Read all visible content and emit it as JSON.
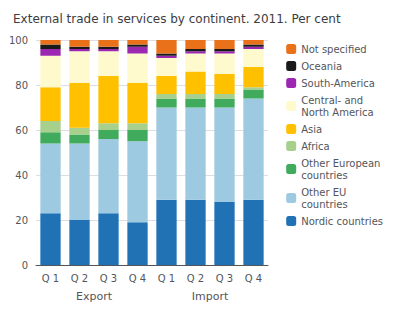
{
  "chart_data": {
    "type": "bar",
    "title": "External trade in services by continent. 2011. Per cent",
    "categories": [
      "Q 1",
      "Q 2",
      "Q 3",
      "Q 4",
      "Q 1",
      "Q 2",
      "Q 3",
      "Q 4"
    ],
    "annotations": [
      "Export",
      "Import"
    ],
    "series": [
      {
        "name": "Nordic countries",
        "color": "#2171B5",
        "values": [
          23,
          20,
          23,
          19,
          29,
          29,
          28,
          29
        ]
      },
      {
        "name": "Other EU\ncountries",
        "color": "#9ECAE1",
        "values": [
          31,
          34,
          33,
          36,
          41,
          41,
          42,
          45
        ]
      },
      {
        "name": "Other European\ncountries",
        "color": "#41AB5D",
        "values": [
          5,
          4,
          4,
          5,
          4,
          4,
          4,
          4
        ]
      },
      {
        "name": "Africa",
        "color": "#A8D08D",
        "values": [
          5,
          3,
          3,
          3,
          2,
          2,
          2,
          1
        ]
      },
      {
        "name": "Asia",
        "color": "#FFC000",
        "values": [
          15,
          20,
          21,
          18,
          8,
          10,
          9,
          9
        ]
      },
      {
        "name": "Central- and\nNorth America",
        "color": "#FFFACD",
        "values": [
          14,
          14,
          11,
          13,
          8,
          8,
          9,
          8
        ]
      },
      {
        "name": "South-America",
        "color": "#9C27B0",
        "values": [
          3,
          1,
          1,
          3,
          1,
          1,
          1,
          1
        ]
      },
      {
        "name": "Oceania",
        "color": "#1A1A1A",
        "values": [
          2,
          1,
          1,
          1,
          1,
          1,
          1,
          1
        ]
      },
      {
        "name": "Not specified",
        "color": "#E8711A",
        "values": [
          2,
          3,
          3,
          2,
          6,
          4,
          4,
          2
        ]
      }
    ],
    "stacked": true,
    "ylim": [
      0,
      100
    ],
    "yticks": [
      0,
      20,
      40,
      60,
      80,
      100
    ],
    "grid": true,
    "legend": "right"
  }
}
